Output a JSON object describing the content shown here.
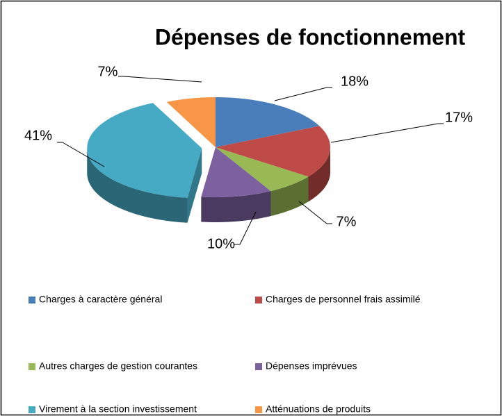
{
  "chart_data": {
    "type": "pie",
    "title": "Dépenses de fonctionnement",
    "categories": [
      "Charges à caractère général",
      "Charges de personnel  frais assimilé",
      "Autres charges de gestion courantes",
      "Dépenses imprévues",
      "Virement à la section investissement",
      "Atténuations de produits"
    ],
    "values": [
      18,
      17,
      7,
      10,
      41,
      7
    ],
    "value_labels": [
      "18%",
      "17%",
      "7%",
      "10%",
      "41%",
      "7%"
    ],
    "colors": [
      "#4a7ebb",
      "#be4b48",
      "#98b954",
      "#7d60a0",
      "#46aac5",
      "#f79646"
    ],
    "legend": "bottom"
  }
}
